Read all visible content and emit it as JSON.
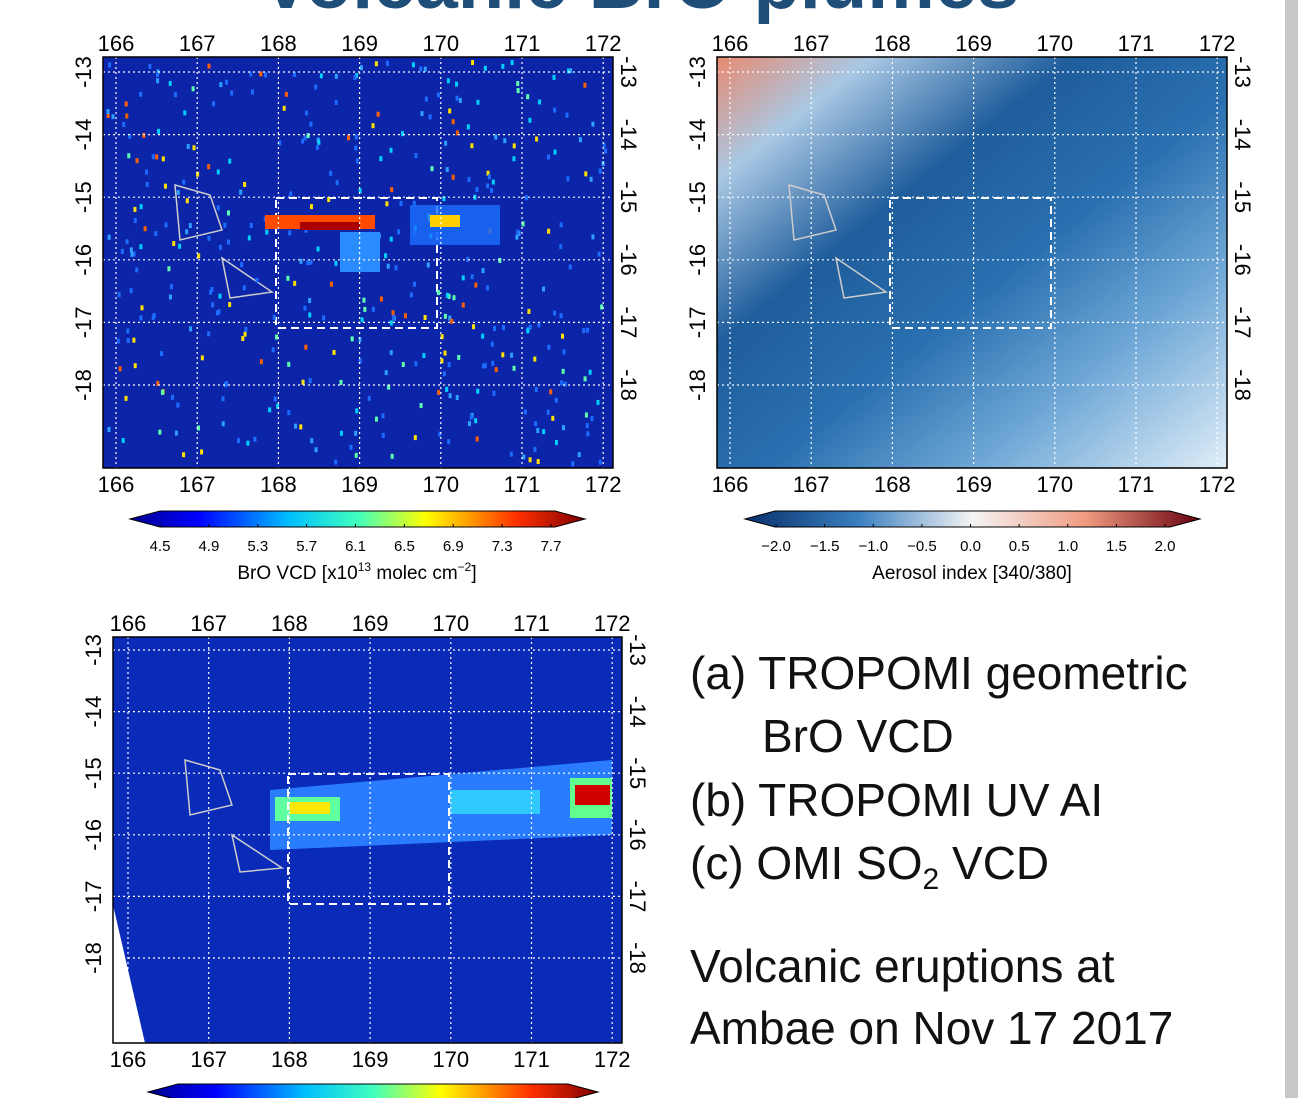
{
  "title": "Volcanic BrO plumes",
  "panels": [
    {
      "lon_ticks": [
        166,
        167,
        168,
        169,
        170,
        171,
        172
      ],
      "lat_ticks": [
        -13,
        -14,
        -15,
        -16,
        -17,
        -18
      ],
      "colorbar": {
        "ticks": [
          4.5,
          4.9,
          5.3,
          5.7,
          6.1,
          6.5,
          6.9,
          7.3,
          7.7
        ],
        "label": [
          "BrO VCD [x10",
          "13",
          " molec cm",
          "−2",
          "]"
        ]
      }
    },
    {
      "lon_ticks": [
        166,
        167,
        168,
        169,
        170,
        171,
        172
      ],
      "lat_ticks": [
        -13,
        -14,
        -15,
        -16,
        -17,
        -18
      ],
      "colorbar": {
        "ticks": [
          {
            "value": -2,
            "label": "−2.0"
          },
          {
            "value": -1.5,
            "label": "−1.5"
          },
          {
            "value": -1,
            "label": "−1.0"
          },
          {
            "value": -0.5,
            "label": "−0.5"
          },
          {
            "value": 0,
            "label": "0.0"
          },
          0.5,
          {
            "value": 1,
            "label": "1.0"
          },
          1.5,
          {
            "value": 2,
            "label": "2.0"
          }
        ],
        "label": [
          "Aerosol index [340/380]"
        ]
      }
    },
    {
      "lon_ticks": [
        166,
        167,
        168,
        169,
        170,
        171,
        172
      ],
      "lat_ticks": [
        -13,
        -14,
        -15,
        -16,
        -17,
        -18
      ]
    }
  ],
  "caption": {
    "a": "(a) TROPOMI geometric",
    "a2": "BrO VCD",
    "b": "(b) TROPOMI UV AI",
    "c": [
      "(c) OMI SO",
      "2",
      " VCD"
    ],
    "note": [
      "Volcanic eruptions at",
      "Ambae on Nov 17 2017"
    ]
  }
}
